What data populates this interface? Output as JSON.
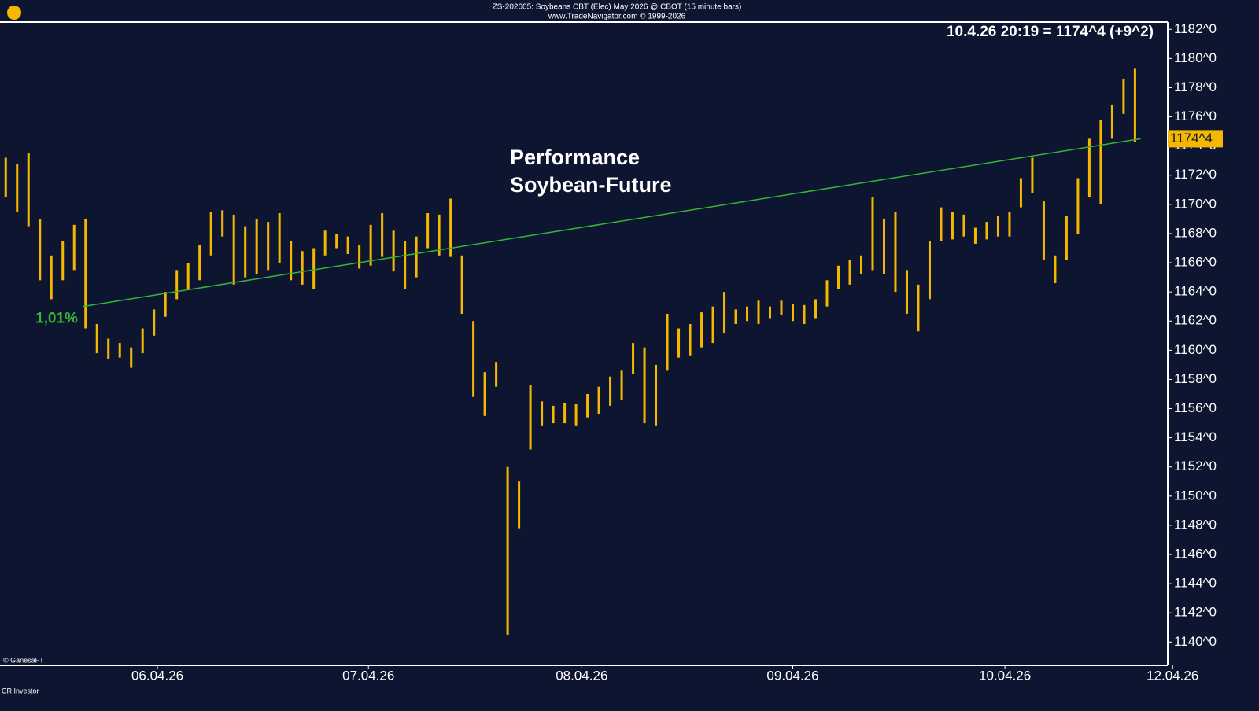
{
  "chart_data": {
    "type": "ohlc",
    "title": "ZS-202605: Soybeans CBT (Elec) May 2026 @ CBOT  (15 minute bars)",
    "subtitle": "www.TradeNavigator.com © 1999-2026",
    "quote": "10.4.26 20:19 = 1174^4 (+9^2)",
    "annotation": [
      "Performance",
      "Soybean-Future"
    ],
    "copyright": "© GanesaFT",
    "footer": "CR Investor",
    "color": "#f5b800",
    "high": [
      1173.2,
      1172.8,
      1173.5,
      1169,
      1166.5,
      1167.5,
      1168.6,
      1169,
      1161.8,
      1160.8,
      1160.5,
      1160.2,
      1161.5,
      1162.8,
      1164,
      1165.5,
      1166,
      1167.2,
      1169.5,
      1169.6,
      1169.3,
      1168.5,
      1169,
      1168.8,
      1169.4,
      1167.5,
      1166.8,
      1167,
      1168.2,
      1168,
      1167.8,
      1167.2,
      1168.6,
      1169.4,
      1168.2,
      1167.5,
      1167.8,
      1169.4,
      1169.3,
      1170.4,
      1166.5,
      1162,
      1158.5,
      1159.2,
      1152,
      1151,
      1157.6,
      1156.5,
      1156.2,
      1156.4,
      1156.3,
      1157,
      1157.5,
      1158.2,
      1158.6,
      1160.5,
      1160.2,
      1159,
      1162.5,
      1161.5,
      1161.8,
      1162.6,
      1163,
      1164,
      1162.8,
      1163,
      1163.4,
      1163,
      1163.4,
      1163.2,
      1163.1,
      1163.5,
      1164.8,
      1165.8,
      1166.2,
      1166.5,
      1170.5,
      1169,
      1169.5,
      1165.5,
      1164.5,
      1167.5,
      1169.8,
      1169.5,
      1169.3,
      1168.4,
      1168.8,
      1169.2,
      1169.5,
      1171.8,
      1173.2,
      1170.2,
      1166.5,
      1169.2,
      1171.8,
      1174.5,
      1175.8,
      1176.8,
      1178.6,
      1179.3
    ],
    "low": [
      1170.5,
      1169.5,
      1168.5,
      1164.8,
      1163.5,
      1164.8,
      1165.5,
      1161.5,
      1159.8,
      1159.4,
      1159.5,
      1158.8,
      1159.8,
      1161,
      1162.3,
      1163.5,
      1164.2,
      1164.8,
      1166.5,
      1167.8,
      1164.5,
      1165,
      1165.2,
      1165.5,
      1166,
      1164.8,
      1164.5,
      1164.2,
      1166.5,
      1167,
      1166.6,
      1165.6,
      1165.8,
      1166.4,
      1165.4,
      1164.2,
      1165,
      1167,
      1166.5,
      1166.4,
      1162.5,
      1156.8,
      1155.5,
      1157.5,
      1140.5,
      1147.8,
      1153.2,
      1154.8,
      1155,
      1155,
      1154.8,
      1155.4,
      1155.6,
      1156.2,
      1156.6,
      1158.4,
      1155,
      1154.8,
      1158.6,
      1159.5,
      1159.6,
      1160.2,
      1160.5,
      1161.2,
      1161.8,
      1162,
      1161.8,
      1162.2,
      1162.4,
      1162,
      1161.8,
      1162.2,
      1163,
      1164.2,
      1164.5,
      1165.2,
      1165.5,
      1165.2,
      1164,
      1162.5,
      1161.3,
      1163.5,
      1167.5,
      1167.6,
      1167.8,
      1167.3,
      1167.6,
      1167.8,
      1167.8,
      1169.8,
      1170.8,
      1166.2,
      1164.6,
      1166.2,
      1168,
      1170.5,
      1170,
      1174.5,
      1176.2,
      1174.3
    ],
    "xlim": [
      0,
      102.3
    ],
    "xticks": [
      {
        "value": 13.8,
        "label": "06.04.26"
      },
      {
        "value": 32.3,
        "label": "07.04.26"
      },
      {
        "value": 51.0,
        "label": "08.04.26"
      },
      {
        "value": 69.5,
        "label": "09.04.26"
      },
      {
        "value": 88.1,
        "label": "10.04.26"
      },
      {
        "value": 102.8,
        "label": "12.04.26"
      }
    ],
    "ylim": [
      1138.4,
      1182.5
    ],
    "yticks": [
      {
        "value": 1140,
        "label": "1140^0"
      },
      {
        "value": 1142,
        "label": "1142^0"
      },
      {
        "value": 1144,
        "label": "1144^0"
      },
      {
        "value": 1146,
        "label": "1146^0"
      },
      {
        "value": 1148,
        "label": "1148^0"
      },
      {
        "value": 1150,
        "label": "1150^0"
      },
      {
        "value": 1152,
        "label": "1152^0"
      },
      {
        "value": 1154,
        "label": "1154^0"
      },
      {
        "value": 1156,
        "label": "1156^0"
      },
      {
        "value": 1158,
        "label": "1158^0"
      },
      {
        "value": 1160,
        "label": "1160^0"
      },
      {
        "value": 1162,
        "label": "1162^0"
      },
      {
        "value": 1164,
        "label": "1164^0"
      },
      {
        "value": 1166,
        "label": "1166^0"
      },
      {
        "value": 1168,
        "label": "1168^0"
      },
      {
        "value": 1170,
        "label": "1170^0"
      },
      {
        "value": 1172,
        "label": "1172^0"
      },
      {
        "value": 1174,
        "label": "1174^0"
      },
      {
        "value": 1176,
        "label": "1176^0"
      },
      {
        "value": 1178,
        "label": "1178^0"
      },
      {
        "value": 1180,
        "label": "1180^0"
      },
      {
        "value": 1182,
        "label": "1182^0"
      }
    ],
    "last_price": {
      "value": 1174.5,
      "label": "1174^4"
    },
    "trend_line": {
      "x": [
        7.24,
        100
      ],
      "y": [
        1163.0,
        1174.5
      ],
      "label": "1,01%",
      "color": "#35b535"
    }
  }
}
